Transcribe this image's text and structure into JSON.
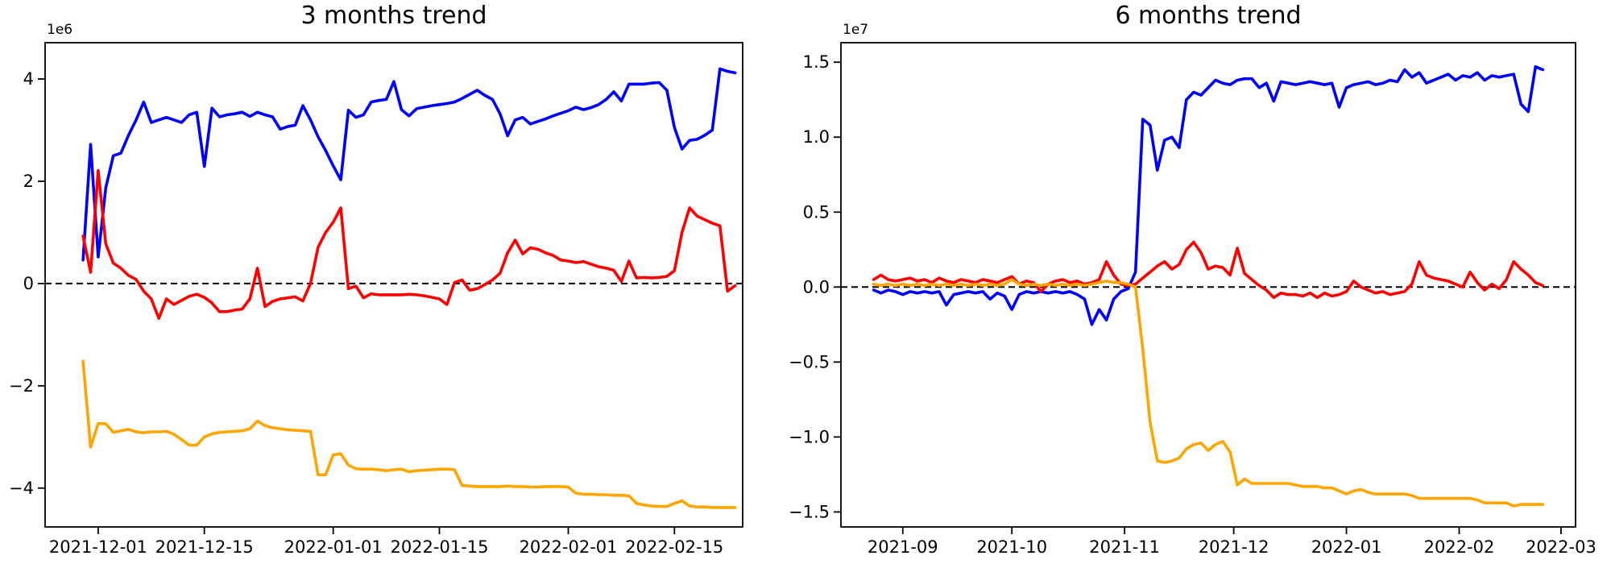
{
  "figure": {
    "background": "#ffffff",
    "text_color": "#000000"
  },
  "chart_data": [
    {
      "type": "line",
      "title": "3 months trend",
      "offset_label": "1e6",
      "value_unit": "values are multiples of 1e6",
      "grid": false,
      "legend": "none",
      "xlim": [
        "2021-11-24",
        "2022-02-24"
      ],
      "ylim": [
        -4.76,
        4.71
      ],
      "zero_line": {
        "style": "dashed",
        "color": "#000000"
      },
      "yticks": [
        {
          "value": 4,
          "label": "4"
        },
        {
          "value": 2,
          "label": "2"
        },
        {
          "value": 0,
          "label": "0"
        },
        {
          "value": -2,
          "label": "−2"
        },
        {
          "value": -4,
          "label": "−4"
        }
      ],
      "xticks": [
        {
          "date": "2021-12-01",
          "label": "2021-12-01"
        },
        {
          "date": "2021-12-15",
          "label": "2021-12-15"
        },
        {
          "date": "2022-01-01",
          "label": "2022-01-01"
        },
        {
          "date": "2022-01-15",
          "label": "2022-01-15"
        },
        {
          "date": "2022-02-01",
          "label": "2022-02-01"
        },
        {
          "date": "2022-02-15",
          "label": "2022-02-15"
        }
      ],
      "x": [
        "2021-11-29",
        "2021-11-30",
        "2021-12-01",
        "2021-12-02",
        "2021-12-03",
        "2021-12-04",
        "2021-12-05",
        "2021-12-06",
        "2021-12-07",
        "2021-12-08",
        "2021-12-09",
        "2021-12-10",
        "2021-12-11",
        "2021-12-12",
        "2021-12-13",
        "2021-12-14",
        "2021-12-15",
        "2021-12-16",
        "2021-12-17",
        "2021-12-18",
        "2021-12-19",
        "2021-12-20",
        "2021-12-21",
        "2021-12-22",
        "2021-12-23",
        "2021-12-24",
        "2021-12-25",
        "2021-12-26",
        "2021-12-27",
        "2021-12-28",
        "2021-12-29",
        "2021-12-30",
        "2021-12-31",
        "2022-01-01",
        "2022-01-02",
        "2022-01-03",
        "2022-01-04",
        "2022-01-05",
        "2022-01-06",
        "2022-01-07",
        "2022-01-08",
        "2022-01-09",
        "2022-01-10",
        "2022-01-11",
        "2022-01-12",
        "2022-01-13",
        "2022-01-14",
        "2022-01-15",
        "2022-01-16",
        "2022-01-17",
        "2022-01-18",
        "2022-01-19",
        "2022-01-20",
        "2022-01-21",
        "2022-01-22",
        "2022-01-23",
        "2022-01-24",
        "2022-01-25",
        "2022-01-26",
        "2022-01-27",
        "2022-01-28",
        "2022-01-29",
        "2022-01-30",
        "2022-01-31",
        "2022-02-01",
        "2022-02-02",
        "2022-02-03",
        "2022-02-04",
        "2022-02-05",
        "2022-02-06",
        "2022-02-07",
        "2022-02-08",
        "2022-02-09",
        "2022-02-10",
        "2022-02-11",
        "2022-02-12",
        "2022-02-13",
        "2022-02-14",
        "2022-02-15",
        "2022-02-16",
        "2022-02-17",
        "2022-02-18",
        "2022-02-19",
        "2022-02-20",
        "2022-02-21",
        "2022-02-22",
        "2022-02-23"
      ],
      "series": [
        {
          "name": "blue",
          "color": "#0000ff",
          "values": [
            0.46,
            2.72,
            0.52,
            1.87,
            2.5,
            2.55,
            2.9,
            3.2,
            3.55,
            3.15,
            3.2,
            3.25,
            3.2,
            3.15,
            3.3,
            3.35,
            2.29,
            3.43,
            3.26,
            3.3,
            3.32,
            3.35,
            3.27,
            3.35,
            3.3,
            3.26,
            3.02,
            3.07,
            3.1,
            3.48,
            3.2,
            2.87,
            2.6,
            2.3,
            2.03,
            3.39,
            3.25,
            3.3,
            3.55,
            3.58,
            3.6,
            3.95,
            3.4,
            3.28,
            3.42,
            3.45,
            3.48,
            3.5,
            3.52,
            3.55,
            3.62,
            3.7,
            3.78,
            3.68,
            3.6,
            3.32,
            2.89,
            3.2,
            3.25,
            3.12,
            3.17,
            3.22,
            3.28,
            3.33,
            3.38,
            3.45,
            3.4,
            3.44,
            3.5,
            3.6,
            3.75,
            3.57,
            3.9,
            3.9,
            3.9,
            3.92,
            3.93,
            3.78,
            3.05,
            2.63,
            2.8,
            2.82,
            2.9,
            3.0,
            4.2,
            4.15,
            4.12
          ]
        },
        {
          "name": "red",
          "color": "#ff0000",
          "values": [
            0.93,
            0.22,
            2.21,
            0.78,
            0.4,
            0.3,
            0.16,
            0.08,
            -0.15,
            -0.3,
            -0.68,
            -0.3,
            -0.41,
            -0.33,
            -0.25,
            -0.21,
            -0.27,
            -0.38,
            -0.55,
            -0.55,
            -0.52,
            -0.5,
            -0.3,
            0.3,
            -0.45,
            -0.35,
            -0.3,
            -0.28,
            -0.26,
            -0.34,
            0.0,
            0.71,
            1.0,
            1.2,
            1.48,
            -0.1,
            -0.05,
            -0.28,
            -0.2,
            -0.22,
            -0.22,
            -0.22,
            -0.22,
            -0.21,
            -0.22,
            -0.24,
            -0.27,
            -0.3,
            -0.41,
            0.02,
            0.07,
            -0.13,
            -0.1,
            -0.02,
            0.07,
            0.2,
            0.6,
            0.85,
            0.58,
            0.7,
            0.67,
            0.6,
            0.55,
            0.46,
            0.44,
            0.41,
            0.43,
            0.38,
            0.33,
            0.3,
            0.26,
            0.04,
            0.44,
            0.11,
            0.12,
            0.11,
            0.12,
            0.14,
            0.25,
            1.0,
            1.48,
            1.32,
            1.25,
            1.18,
            1.13,
            -0.15,
            -0.04
          ]
        },
        {
          "name": "orange",
          "color": "#ffa500",
          "values": [
            -1.52,
            -3.2,
            -2.74,
            -2.74,
            -2.91,
            -2.88,
            -2.85,
            -2.9,
            -2.92,
            -2.9,
            -2.9,
            -2.89,
            -2.95,
            -3.05,
            -3.16,
            -3.16,
            -3.0,
            -2.94,
            -2.91,
            -2.9,
            -2.89,
            -2.88,
            -2.84,
            -2.69,
            -2.78,
            -2.82,
            -2.84,
            -2.86,
            -2.87,
            -2.88,
            -2.89,
            -3.74,
            -3.74,
            -3.35,
            -3.33,
            -3.55,
            -3.62,
            -3.63,
            -3.63,
            -3.64,
            -3.66,
            -3.64,
            -3.63,
            -3.68,
            -3.66,
            -3.65,
            -3.64,
            -3.63,
            -3.63,
            -3.64,
            -3.95,
            -3.96,
            -3.97,
            -3.97,
            -3.97,
            -3.97,
            -3.96,
            -3.97,
            -3.97,
            -3.98,
            -3.98,
            -3.97,
            -3.97,
            -3.97,
            -3.98,
            -4.1,
            -4.12,
            -4.12,
            -4.13,
            -4.13,
            -4.14,
            -4.14,
            -4.15,
            -4.3,
            -4.33,
            -4.35,
            -4.36,
            -4.36,
            -4.3,
            -4.25,
            -4.35,
            -4.37,
            -4.37,
            -4.38,
            -4.38,
            -4.38,
            -4.38
          ]
        }
      ]
    },
    {
      "type": "line",
      "title": "6 months trend",
      "offset_label": "1e7",
      "value_unit": "values are multiples of 1e7",
      "grid": false,
      "legend": "none",
      "xlim": [
        "2021-08-15",
        "2022-03-05"
      ],
      "ylim": [
        -1.6,
        1.63
      ],
      "zero_line": {
        "style": "dashed",
        "color": "#000000"
      },
      "yticks": [
        {
          "value": 1.5,
          "label": "1.5"
        },
        {
          "value": 1.0,
          "label": "1.0"
        },
        {
          "value": 0.5,
          "label": "0.5"
        },
        {
          "value": 0.0,
          "label": "0.0"
        },
        {
          "value": -0.5,
          "label": "−0.5"
        },
        {
          "value": -1.0,
          "label": "−1.0"
        },
        {
          "value": -1.5,
          "label": "−1.5"
        }
      ],
      "xticks": [
        {
          "date": "2021-09-01",
          "label": "2021-09"
        },
        {
          "date": "2021-10-01",
          "label": "2021-10"
        },
        {
          "date": "2021-11-01",
          "label": "2021-11"
        },
        {
          "date": "2021-12-01",
          "label": "2021-12"
        },
        {
          "date": "2022-01-01",
          "label": "2022-01"
        },
        {
          "date": "2022-02-01",
          "label": "2022-02"
        },
        {
          "date": "2022-03-01",
          "label": "2022-03"
        }
      ],
      "x": [
        "2021-08-24",
        "2021-08-26",
        "2021-08-28",
        "2021-08-30",
        "2021-09-01",
        "2021-09-03",
        "2021-09-05",
        "2021-09-07",
        "2021-09-09",
        "2021-09-11",
        "2021-09-13",
        "2021-09-15",
        "2021-09-17",
        "2021-09-19",
        "2021-09-21",
        "2021-09-23",
        "2021-09-25",
        "2021-09-27",
        "2021-09-29",
        "2021-10-01",
        "2021-10-03",
        "2021-10-05",
        "2021-10-07",
        "2021-10-09",
        "2021-10-11",
        "2021-10-13",
        "2021-10-15",
        "2021-10-17",
        "2021-10-19",
        "2021-10-21",
        "2021-10-23",
        "2021-10-25",
        "2021-10-27",
        "2021-10-29",
        "2021-10-31",
        "2021-11-02",
        "2021-11-04",
        "2021-11-06",
        "2021-11-08",
        "2021-11-10",
        "2021-11-12",
        "2021-11-14",
        "2021-11-16",
        "2021-11-18",
        "2021-11-20",
        "2021-11-22",
        "2021-11-24",
        "2021-11-26",
        "2021-11-28",
        "2021-11-30",
        "2021-12-02",
        "2021-12-04",
        "2021-12-06",
        "2021-12-08",
        "2021-12-10",
        "2021-12-12",
        "2021-12-14",
        "2021-12-16",
        "2021-12-18",
        "2021-12-20",
        "2021-12-22",
        "2021-12-24",
        "2021-12-26",
        "2021-12-28",
        "2021-12-30",
        "2022-01-01",
        "2022-01-03",
        "2022-01-05",
        "2022-01-07",
        "2022-01-09",
        "2022-01-11",
        "2022-01-13",
        "2022-01-15",
        "2022-01-17",
        "2022-01-19",
        "2022-01-21",
        "2022-01-23",
        "2022-01-25",
        "2022-01-27",
        "2022-01-29",
        "2022-01-31",
        "2022-02-02",
        "2022-02-04",
        "2022-02-06",
        "2022-02-08",
        "2022-02-10",
        "2022-02-12",
        "2022-02-14",
        "2022-02-16",
        "2022-02-18",
        "2022-02-20",
        "2022-02-22",
        "2022-02-24"
      ],
      "series": [
        {
          "name": "blue",
          "color": "#0000ff",
          "values": [
            -0.02,
            -0.04,
            -0.02,
            -0.03,
            -0.05,
            -0.03,
            -0.04,
            -0.03,
            -0.04,
            -0.03,
            -0.12,
            -0.05,
            -0.04,
            -0.03,
            -0.04,
            -0.03,
            -0.08,
            -0.04,
            -0.06,
            -0.15,
            -0.05,
            -0.03,
            -0.04,
            -0.03,
            -0.04,
            -0.03,
            -0.04,
            -0.03,
            -0.05,
            -0.08,
            -0.25,
            -0.15,
            -0.22,
            -0.08,
            -0.03,
            -0.01,
            0.1,
            1.12,
            1.08,
            0.78,
            0.98,
            1.0,
            0.93,
            1.25,
            1.3,
            1.28,
            1.33,
            1.38,
            1.36,
            1.35,
            1.38,
            1.39,
            1.39,
            1.33,
            1.36,
            1.24,
            1.37,
            1.36,
            1.35,
            1.36,
            1.37,
            1.36,
            1.35,
            1.36,
            1.2,
            1.33,
            1.35,
            1.36,
            1.37,
            1.35,
            1.36,
            1.38,
            1.37,
            1.45,
            1.4,
            1.43,
            1.36,
            1.38,
            1.4,
            1.42,
            1.38,
            1.41,
            1.4,
            1.43,
            1.38,
            1.41,
            1.4,
            1.41,
            1.42,
            1.22,
            1.17,
            1.47,
            1.45
          ]
        },
        {
          "name": "red",
          "color": "#ff0000",
          "values": [
            0.05,
            0.08,
            0.05,
            0.04,
            0.05,
            0.06,
            0.04,
            0.05,
            0.03,
            0.06,
            0.04,
            0.03,
            0.05,
            0.04,
            0.03,
            0.05,
            0.04,
            0.03,
            0.05,
            0.07,
            0.02,
            0.04,
            0.03,
            -0.03,
            0.02,
            0.04,
            0.05,
            0.03,
            0.04,
            0.02,
            0.03,
            0.05,
            0.17,
            0.08,
            0.02,
            0.01,
            0.02,
            0.06,
            0.1,
            0.14,
            0.17,
            0.12,
            0.15,
            0.25,
            0.3,
            0.23,
            0.12,
            0.14,
            0.13,
            0.08,
            0.26,
            0.09,
            0.05,
            0.01,
            -0.02,
            -0.07,
            -0.04,
            -0.05,
            -0.05,
            -0.06,
            -0.04,
            -0.07,
            -0.04,
            -0.06,
            -0.05,
            -0.03,
            0.04,
            0.0,
            -0.02,
            -0.04,
            -0.03,
            -0.05,
            -0.04,
            -0.03,
            0.02,
            0.17,
            0.08,
            0.06,
            0.05,
            0.04,
            0.02,
            0.0,
            0.1,
            0.03,
            -0.02,
            0.02,
            -0.01,
            0.05,
            0.17,
            0.12,
            0.08,
            0.03,
            0.01
          ]
        },
        {
          "name": "orange",
          "color": "#ffa500",
          "values": [
            0.02,
            0.01,
            0.02,
            0.01,
            0.02,
            0.01,
            0.02,
            0.01,
            0.02,
            0.01,
            0.02,
            0.01,
            0.02,
            0.01,
            0.02,
            0.01,
            0.02,
            0.01,
            0.02,
            0.05,
            0.02,
            0.01,
            0.02,
            0.01,
            0.02,
            0.01,
            0.02,
            0.01,
            0.02,
            0.01,
            0.02,
            0.03,
            0.04,
            0.03,
            0.03,
            0.02,
            0.0,
            -0.41,
            -0.9,
            -1.16,
            -1.17,
            -1.16,
            -1.14,
            -1.08,
            -1.05,
            -1.04,
            -1.09,
            -1.05,
            -1.03,
            -1.1,
            -1.32,
            -1.28,
            -1.31,
            -1.31,
            -1.31,
            -1.31,
            -1.31,
            -1.31,
            -1.32,
            -1.33,
            -1.33,
            -1.33,
            -1.34,
            -1.34,
            -1.36,
            -1.38,
            -1.36,
            -1.35,
            -1.37,
            -1.38,
            -1.38,
            -1.38,
            -1.38,
            -1.38,
            -1.39,
            -1.41,
            -1.41,
            -1.41,
            -1.41,
            -1.41,
            -1.41,
            -1.41,
            -1.41,
            -1.42,
            -1.44,
            -1.44,
            -1.44,
            -1.44,
            -1.46,
            -1.45,
            -1.45,
            -1.45,
            -1.45
          ]
        }
      ]
    }
  ]
}
